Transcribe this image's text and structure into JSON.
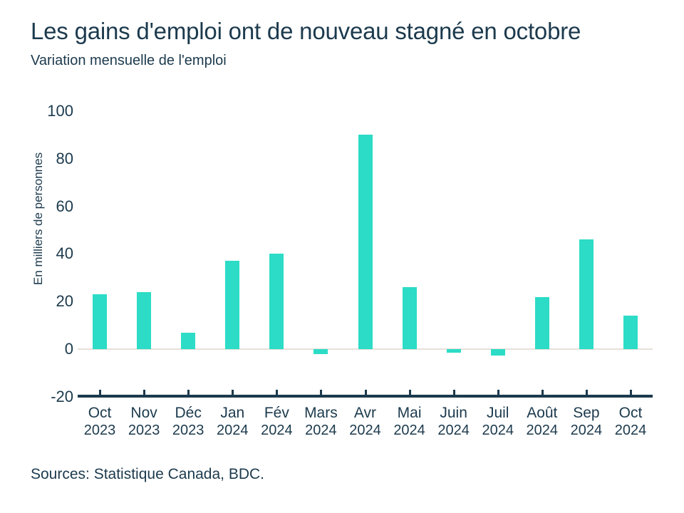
{
  "header": {
    "title": "Les gains d'emploi ont de nouveau stagné en octobre",
    "subtitle": "Variation mensuelle de l'emploi"
  },
  "footer": {
    "sources": "Sources: Statistique Canada, BDC."
  },
  "colors": {
    "background": "#FFFFFF",
    "text": "#1C3A4D",
    "axis": "#1C3A4D",
    "zero_line": "#E6E1DA",
    "bar": "#2CDCC6"
  },
  "chart_data": {
    "type": "bar",
    "title": "Les gains d'emploi ont de nouveau stagné en octobre",
    "subtitle": "Variation mensuelle de l'emploi",
    "categories": [
      "Oct 2023",
      "Nov 2023",
      "Déc 2023",
      "Jan 2024",
      "Fév 2024",
      "Mars 2024",
      "Avr 2024",
      "Mai 2024",
      "Juin 2024",
      "Juil 2024",
      "Août 2024",
      "Sep 2024",
      "Oct 2024"
    ],
    "values": [
      23,
      24,
      7,
      37,
      40,
      -2.2,
      90,
      26,
      -1.4,
      -2.8,
      22,
      46,
      14
    ],
    "xlabel": "",
    "ylabel": "En milliers de personnes",
    "yticks": [
      100,
      80,
      60,
      40,
      20,
      0,
      -20
    ],
    "ylim": [
      -20,
      103
    ],
    "grid": "zero-line-only",
    "legend": "none",
    "bar_color": "#2CDCC6"
  }
}
